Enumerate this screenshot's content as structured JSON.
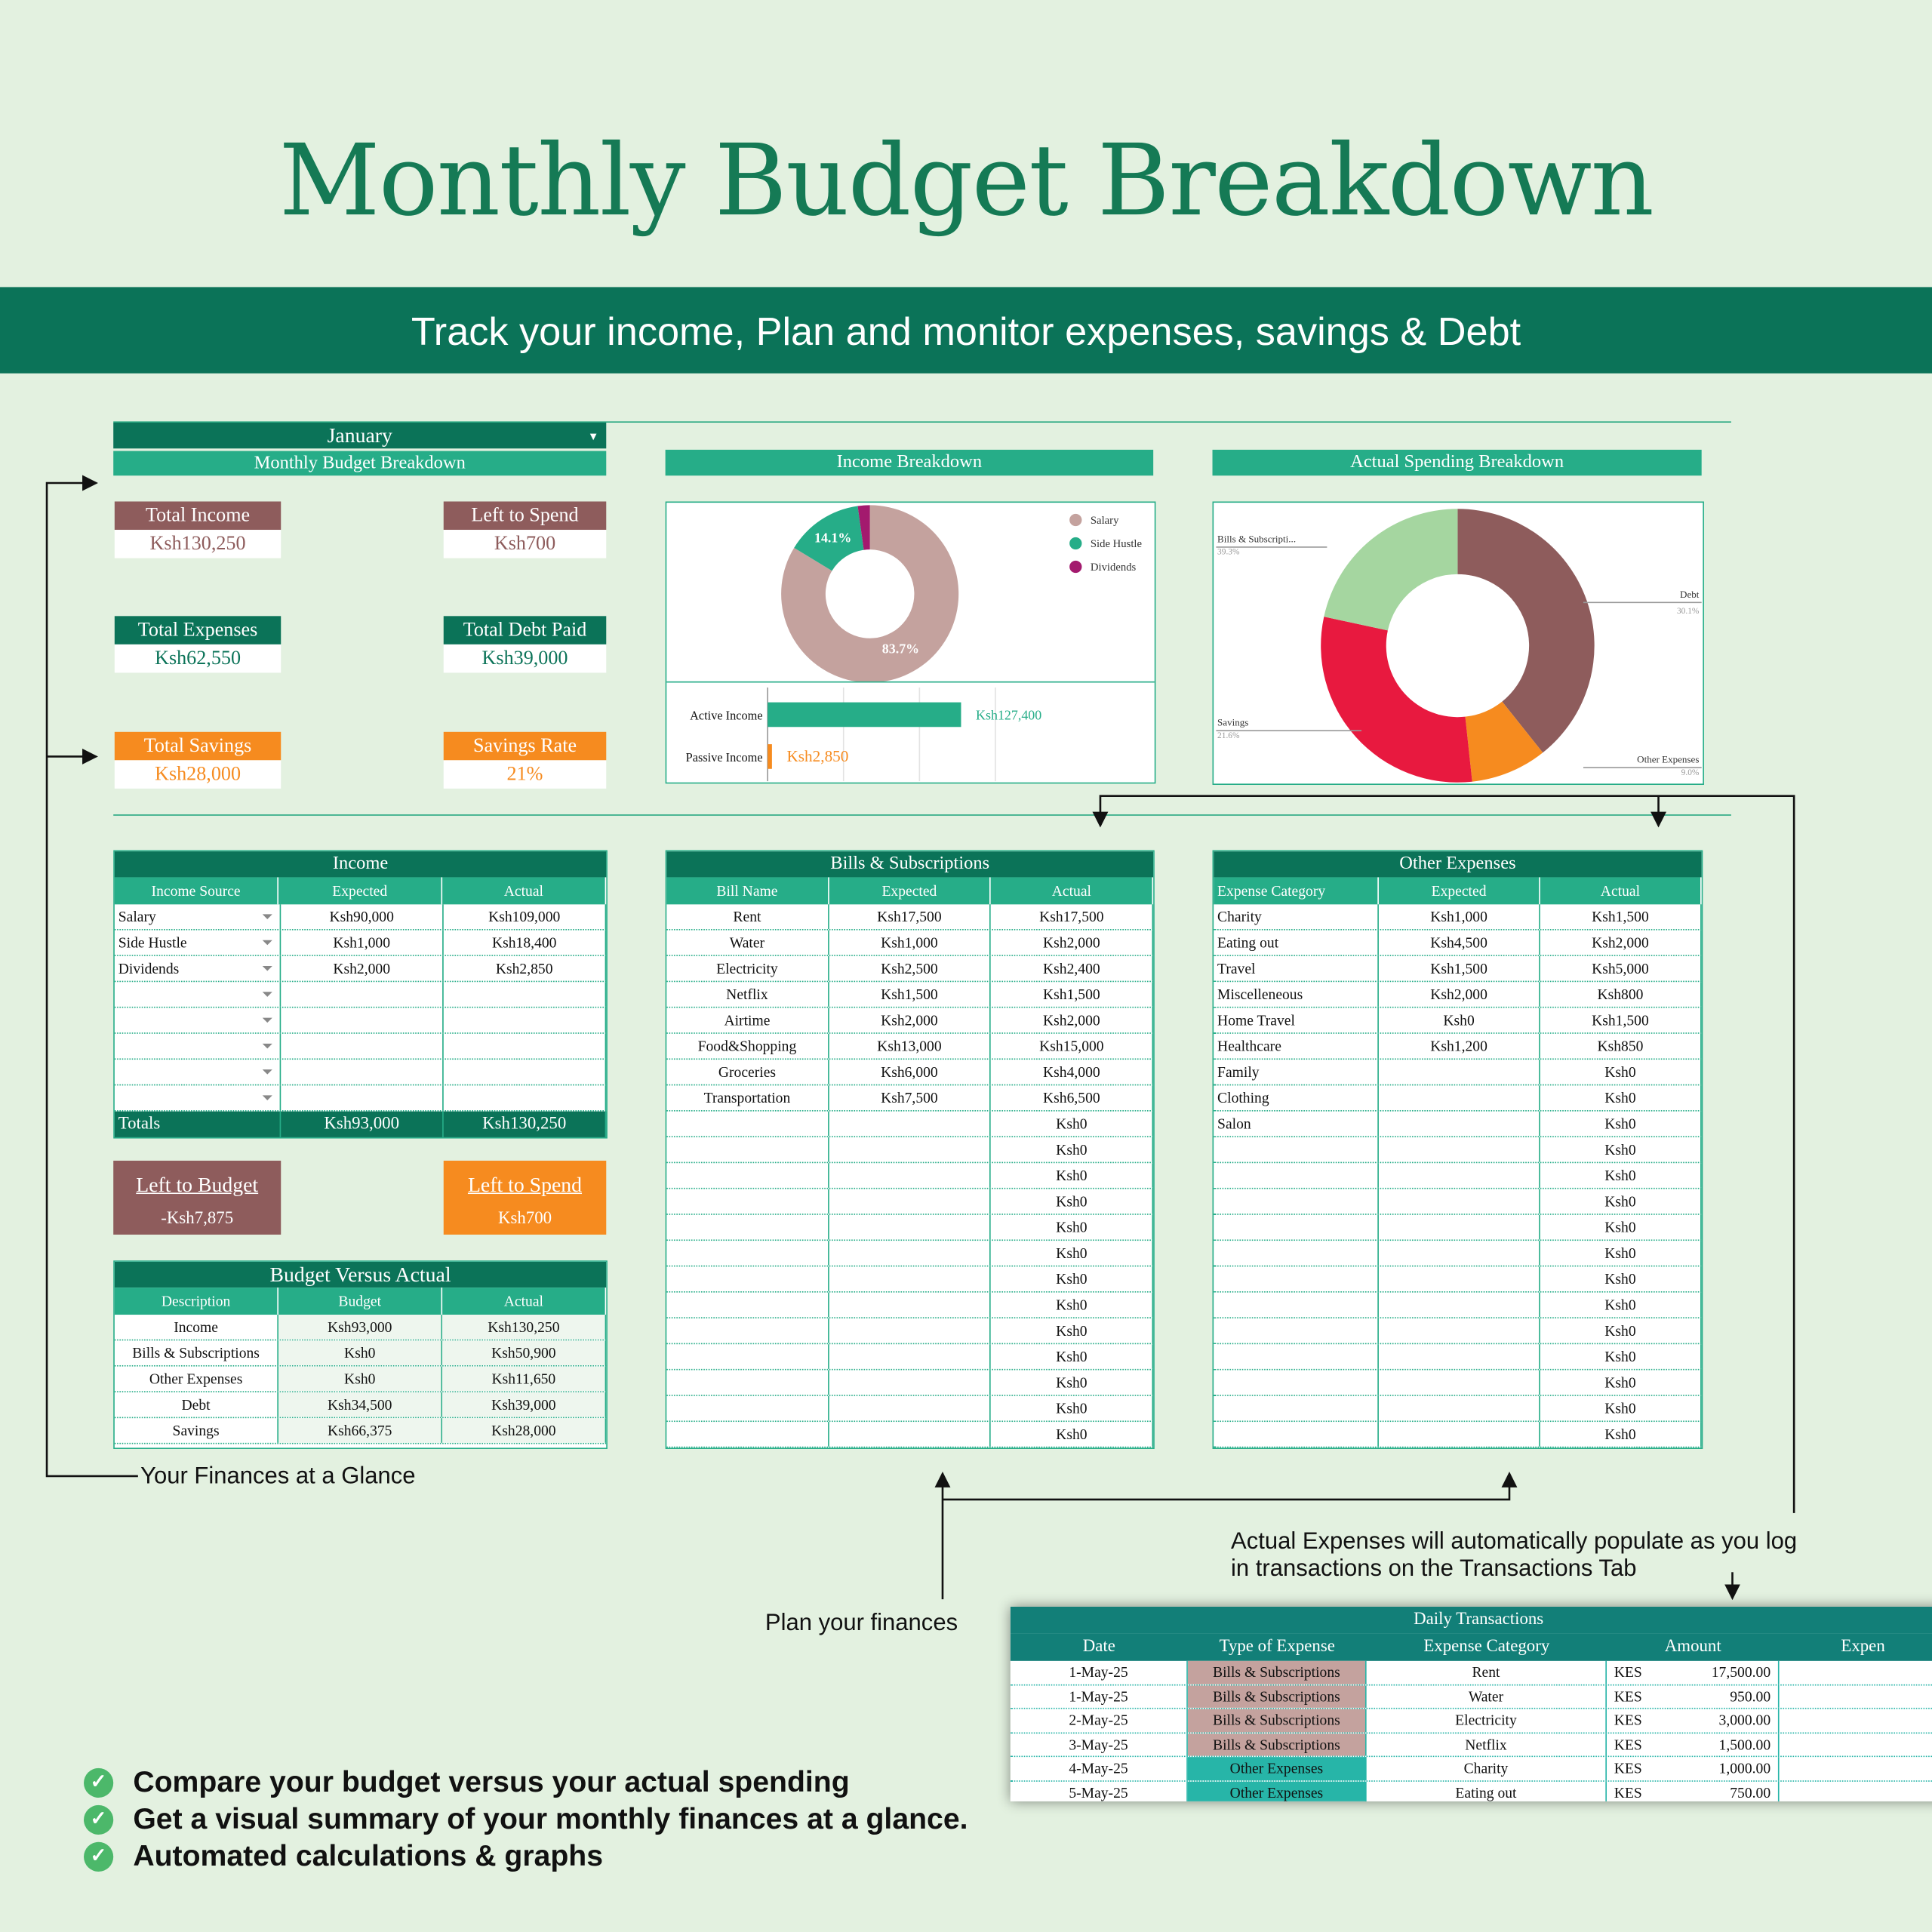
{
  "title": "Monthly Budget Breakdown",
  "subtitle": "Track your income, Plan and monitor expenses, savings & Debt",
  "month": "January",
  "section_title": "Monthly Budget Breakdown",
  "colors": {
    "dark_green": "#0b7358",
    "green": "#26ad88",
    "brown": "#8e5c5c",
    "orange": "#f68b1f",
    "red": "#e8193f",
    "light_green": "#a5d6a0",
    "teal": "#127f78"
  },
  "cards": [
    {
      "label": "Total Income",
      "value": "Ksh130,250",
      "color": "#8e5c5c"
    },
    {
      "label": "Left to Spend",
      "value": "Ksh700",
      "color": "#8e5c5c"
    },
    {
      "label": "Total Expenses",
      "value": "Ksh62,550",
      "color": "#0b7358"
    },
    {
      "label": "Total Debt Paid",
      "value": "Ksh39,000",
      "color": "#0b7358"
    },
    {
      "label": "Total Savings",
      "value": "Ksh28,000",
      "color": "#f68b1f"
    },
    {
      "label": "Savings Rate",
      "value": "21%",
      "color": "#f68b1f"
    }
  ],
  "income_breakdown_title": "Income Breakdown",
  "spending_breakdown_title": "Actual Spending Breakdown",
  "chart_data": [
    {
      "type": "pie",
      "style": "donut",
      "labels": [
        "Salary",
        "Side Hustle",
        "Dividends"
      ],
      "values": [
        83.7,
        14.1,
        2.2
      ],
      "data_labels": [
        "83.7%",
        "14.1%",
        ""
      ],
      "colors": [
        "#c4a29e",
        "#26ad88",
        "#a31a6e"
      ],
      "legend": "right"
    },
    {
      "type": "bar",
      "orientation": "horizontal",
      "categories": [
        "Active Income",
        "Passive Income"
      ],
      "values": [
        127400,
        2850
      ],
      "data_labels": [
        "Ksh127,400",
        "Ksh2,850"
      ],
      "colors": [
        "#26ad88",
        "#f68b1f"
      ],
      "grid": true
    },
    {
      "type": "pie",
      "style": "donut",
      "labels": [
        "Bills & Subscripti...",
        "Other Expenses",
        "Debt",
        "Savings"
      ],
      "values": [
        39.3,
        9.0,
        30.1,
        21.6
      ],
      "data_labels": [
        "39.3%",
        "9.0%",
        "30.1%",
        "21.6%"
      ],
      "colors": [
        "#8e5c5c",
        "#f68b1f",
        "#e8193f",
        "#a5d6a0"
      ],
      "legend": "none"
    }
  ],
  "income_table": {
    "title": "Income",
    "headers": [
      "Income Source",
      "Expected",
      "Actual"
    ],
    "rows": [
      [
        "Salary",
        "Ksh90,000",
        "Ksh109,000"
      ],
      [
        "Side Hustle",
        "Ksh1,000",
        "Ksh18,400"
      ],
      [
        "Dividends",
        "Ksh2,000",
        "Ksh2,850"
      ],
      [
        "",
        "",
        ""
      ],
      [
        "",
        "",
        ""
      ],
      [
        "",
        "",
        ""
      ],
      [
        "",
        "",
        ""
      ],
      [
        "",
        "",
        ""
      ]
    ],
    "totals": [
      "Totals",
      "Ksh93,000",
      "Ksh130,250"
    ]
  },
  "left_to_budget": {
    "label": "Left to Budget",
    "value": "-Ksh7,875"
  },
  "left_to_spend": {
    "label": "Left to Spend",
    "value": "Ksh700"
  },
  "bva_table": {
    "title": "Budget Versus Actual",
    "headers": [
      "Description",
      "Budget",
      "Actual"
    ],
    "rows": [
      [
        "Income",
        "Ksh93,000",
        "Ksh130,250"
      ],
      [
        "Bills & Subscriptions",
        "Ksh0",
        "Ksh50,900"
      ],
      [
        "Other Expenses",
        "Ksh0",
        "Ksh11,650"
      ],
      [
        "Debt",
        "Ksh34,500",
        "Ksh39,000"
      ],
      [
        "Savings",
        "Ksh66,375",
        "Ksh28,000"
      ]
    ]
  },
  "bills_table": {
    "title": "Bills & Subscriptions",
    "headers": [
      "Bill Name",
      "Expected",
      "Actual"
    ],
    "rows": [
      [
        "Rent",
        "Ksh17,500",
        "Ksh17,500"
      ],
      [
        "Water",
        "Ksh1,000",
        "Ksh2,000"
      ],
      [
        "Electricity",
        "Ksh2,500",
        "Ksh2,400"
      ],
      [
        "Netflix",
        "Ksh1,500",
        "Ksh1,500"
      ],
      [
        "Airtime",
        "Ksh2,000",
        "Ksh2,000"
      ],
      [
        "Food&Shopping",
        "Ksh13,000",
        "Ksh15,000"
      ],
      [
        "Groceries",
        "Ksh6,000",
        "Ksh4,000"
      ],
      [
        "Transportation",
        "Ksh7,500",
        "Ksh6,500"
      ],
      [
        "",
        "",
        "Ksh0"
      ],
      [
        "",
        "",
        "Ksh0"
      ],
      [
        "",
        "",
        "Ksh0"
      ],
      [
        "",
        "",
        "Ksh0"
      ],
      [
        "",
        "",
        "Ksh0"
      ],
      [
        "",
        "",
        "Ksh0"
      ],
      [
        "",
        "",
        "Ksh0"
      ],
      [
        "",
        "",
        "Ksh0"
      ],
      [
        "",
        "",
        "Ksh0"
      ],
      [
        "",
        "",
        "Ksh0"
      ],
      [
        "",
        "",
        "Ksh0"
      ],
      [
        "",
        "",
        "Ksh0"
      ],
      [
        "",
        "",
        "Ksh0"
      ]
    ]
  },
  "other_table": {
    "title": "Other Expenses",
    "headers": [
      "Expense Category",
      "Expected",
      "Actual"
    ],
    "rows": [
      [
        "Charity",
        "Ksh1,000",
        "Ksh1,500"
      ],
      [
        "Eating out",
        "Ksh4,500",
        "Ksh2,000"
      ],
      [
        "Travel",
        "Ksh1,500",
        "Ksh5,000"
      ],
      [
        "Miscelleneous",
        "Ksh2,000",
        "Ksh800"
      ],
      [
        "Home Travel",
        "Ksh0",
        "Ksh1,500"
      ],
      [
        "Healthcare",
        "Ksh1,200",
        "Ksh850"
      ],
      [
        "Family",
        "",
        "Ksh0"
      ],
      [
        "Clothing",
        "",
        "Ksh0"
      ],
      [
        "Salon",
        "",
        "Ksh0"
      ],
      [
        "",
        "",
        "Ksh0"
      ],
      [
        "",
        "",
        "Ksh0"
      ],
      [
        "",
        "",
        "Ksh0"
      ],
      [
        "",
        "",
        "Ksh0"
      ],
      [
        "",
        "",
        "Ksh0"
      ],
      [
        "",
        "",
        "Ksh0"
      ],
      [
        "",
        "",
        "Ksh0"
      ],
      [
        "",
        "",
        "Ksh0"
      ],
      [
        "",
        "",
        "Ksh0"
      ],
      [
        "",
        "",
        "Ksh0"
      ],
      [
        "",
        "",
        "Ksh0"
      ],
      [
        "",
        "",
        "Ksh0"
      ]
    ]
  },
  "notes": {
    "glance": "Your Finances at a Glance",
    "plan": "Plan your finances",
    "auto": "Actual Expenses will automatically populate as you log",
    "auto2": "in transactions on the Transactions Tab"
  },
  "daily": {
    "title": "Daily Transactions",
    "headers": [
      "Date",
      "Type of Expense",
      "Expense Category",
      "Amount",
      "Expen"
    ],
    "rows": [
      [
        "1-May-25",
        "Bills & Subscriptions",
        "Rent",
        "KES",
        "17,500.00"
      ],
      [
        "1-May-25",
        "Bills & Subscriptions",
        "Water",
        "KES",
        "950.00"
      ],
      [
        "2-May-25",
        "Bills & Subscriptions",
        "Electricity",
        "KES",
        "3,000.00"
      ],
      [
        "3-May-25",
        "Bills & Subscriptions",
        "Netflix",
        "KES",
        "1,500.00"
      ],
      [
        "4-May-25",
        "Other Expenses",
        "Charity",
        "KES",
        "1,000.00"
      ],
      [
        "5-May-25",
        "Other Expenses",
        "Eating out",
        "KES",
        "750.00"
      ]
    ],
    "type_colors": {
      "Bills & Subscriptions": "#c4a29e",
      "Other Expenses": "#27b5a8"
    }
  },
  "bullets": [
    "Compare your budget versus your actual spending",
    "Get a visual summary of your monthly finances at a glance.",
    "Automated calculations & graphs"
  ]
}
